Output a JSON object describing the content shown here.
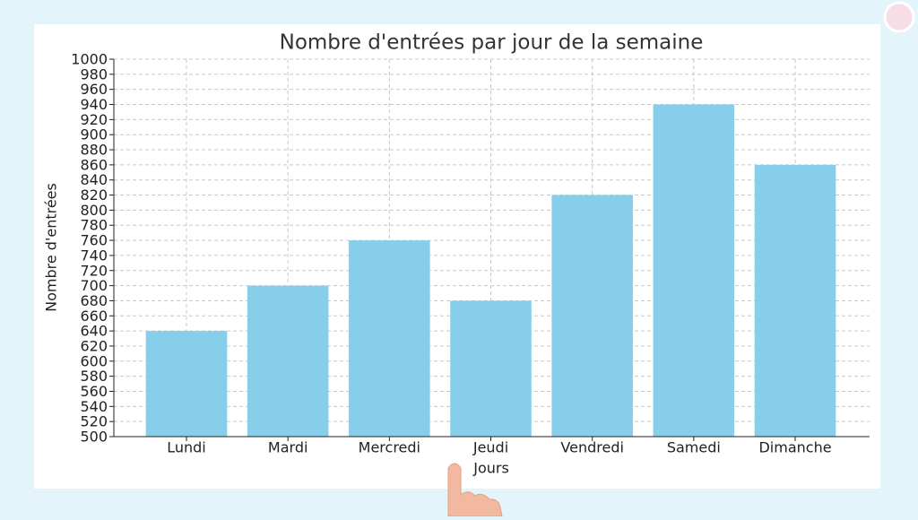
{
  "chart_data": {
    "type": "bar",
    "title": "Nombre d'entrées par jour de la semaine",
    "x_label": "Jours",
    "y_label": "Nombre d'entrées",
    "categories": [
      "Lundi",
      "Mardi",
      "Mercredi",
      "Jeudi",
      "Vendredi",
      "Samedi",
      "Dimanche"
    ],
    "values": [
      640,
      700,
      760,
      680,
      820,
      940,
      860
    ],
    "color": "#87ceeb",
    "ylim": [
      500,
      1000
    ],
    "yticks": [
      500,
      520,
      540,
      560,
      580,
      600,
      620,
      640,
      660,
      680,
      700,
      720,
      740,
      760,
      780,
      800,
      820,
      840,
      860,
      880,
      900,
      920,
      940,
      960,
      980,
      1000
    ],
    "grid": true
  }
}
